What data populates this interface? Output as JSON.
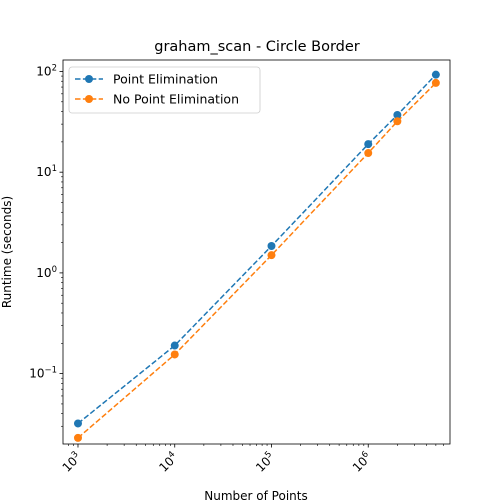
{
  "chart_data": {
    "type": "line",
    "title": "graham_scan - Circle Border",
    "xlabel": "Number of Points",
    "ylabel": "Runtime (seconds)",
    "xscale": "log",
    "yscale": "log",
    "xlim": [
      700,
      7000000
    ],
    "ylim": [
      0.02,
      130
    ],
    "x_ticks": [
      {
        "value": 1000,
        "base": "10",
        "exp": "3"
      },
      {
        "value": 10000,
        "base": "10",
        "exp": "4"
      },
      {
        "value": 100000,
        "base": "10",
        "exp": "5"
      },
      {
        "value": 1000000,
        "base": "10",
        "exp": "6"
      }
    ],
    "y_ticks": [
      {
        "value": 0.1,
        "base": "10",
        "exp": "−1"
      },
      {
        "value": 1,
        "base": "10",
        "exp": "0"
      },
      {
        "value": 10,
        "base": "10",
        "exp": "1"
      },
      {
        "value": 100,
        "base": "10",
        "exp": "2"
      }
    ],
    "grid": false,
    "legend_position": "top-left",
    "series": [
      {
        "name": "Point Elimination",
        "color": "#1f77b4",
        "x": [
          1000,
          10000,
          100000,
          1000000,
          2000000,
          5000000
        ],
        "y": [
          0.032,
          0.19,
          1.85,
          19,
          37,
          93
        ]
      },
      {
        "name": "No Point Elimination",
        "color": "#ff7f0e",
        "x": [
          1000,
          10000,
          100000,
          1000000,
          2000000,
          5000000
        ],
        "y": [
          0.023,
          0.155,
          1.5,
          15.5,
          32,
          77
        ]
      }
    ]
  }
}
